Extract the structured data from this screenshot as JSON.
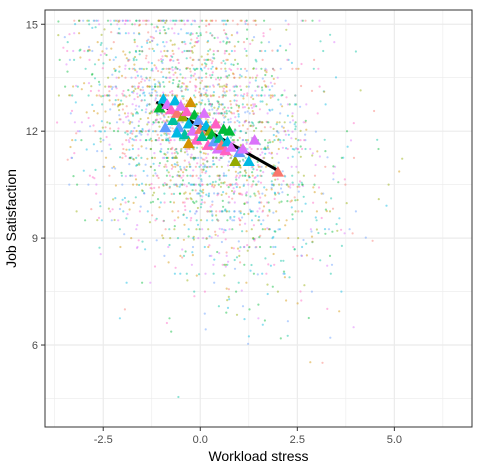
{
  "chart_data": {
    "type": "scatter",
    "title": "",
    "xlabel": "Workload stress",
    "ylabel": "Job Satisfaction",
    "xlim": [
      -4.0,
      7.0
    ],
    "ylim": [
      3.7,
      15.4
    ],
    "x_ticks": [
      -2.5,
      0.0,
      2.5,
      5.0
    ],
    "x_tick_labels": [
      "-2.5",
      "0.0",
      "2.5",
      "5.0"
    ],
    "y_ticks": [
      6,
      9,
      12,
      15
    ],
    "y_tick_labels": [
      "6",
      "9",
      "12",
      "15"
    ],
    "grid": true,
    "legend": "none",
    "colors": {
      "panel_border": "#333333",
      "grid_major": "#ebebeb",
      "fit_line": "#000000",
      "group_palette": [
        "#F8766D",
        "#D39200",
        "#93AA00",
        "#00BA38",
        "#00C19F",
        "#00B9E3",
        "#619CFF",
        "#DB72FB",
        "#FF61C3"
      ]
    },
    "raw_points": {
      "description_free": true,
      "count": 2600,
      "x_mean": 0.0,
      "x_sd": 1.6,
      "y_intercept": 12.0,
      "y_slope": -0.38,
      "y_noise_sd": 1.9,
      "y_max": 15.1,
      "marker": "small translucent dot"
    },
    "group_means": {
      "marker": "triangle",
      "points": [
        {
          "x": -1.05,
          "y": 12.65,
          "color": "#00BA38"
        },
        {
          "x": -0.95,
          "y": 12.9,
          "color": "#00B9E3"
        },
        {
          "x": -0.85,
          "y": 12.75,
          "color": "#DB72FB"
        },
        {
          "x": -0.75,
          "y": 12.6,
          "color": "#FF61C3"
        },
        {
          "x": -0.7,
          "y": 12.3,
          "color": "#00C19F"
        },
        {
          "x": -0.65,
          "y": 12.85,
          "color": "#00B9E3"
        },
        {
          "x": -0.6,
          "y": 12.5,
          "color": "#F8766D"
        },
        {
          "x": -0.55,
          "y": 12.1,
          "color": "#619CFF"
        },
        {
          "x": -0.5,
          "y": 12.7,
          "color": "#DB72FB"
        },
        {
          "x": -0.45,
          "y": 12.4,
          "color": "#93AA00"
        },
        {
          "x": -0.4,
          "y": 11.9,
          "color": "#00C19F"
        },
        {
          "x": -0.35,
          "y": 12.55,
          "color": "#FF61C3"
        },
        {
          "x": -0.3,
          "y": 12.2,
          "color": "#00B9E3"
        },
        {
          "x": -0.25,
          "y": 12.8,
          "color": "#D39200"
        },
        {
          "x": -0.2,
          "y": 12.0,
          "color": "#DB72FB"
        },
        {
          "x": -0.15,
          "y": 12.45,
          "color": "#00BA38"
        },
        {
          "x": -0.1,
          "y": 11.75,
          "color": "#FF61C3"
        },
        {
          "x": -0.05,
          "y": 12.3,
          "color": "#619CFF"
        },
        {
          "x": 0.0,
          "y": 12.05,
          "color": "#F8766D"
        },
        {
          "x": 0.05,
          "y": 11.85,
          "color": "#00C19F"
        },
        {
          "x": 0.1,
          "y": 12.5,
          "color": "#DB72FB"
        },
        {
          "x": 0.15,
          "y": 12.15,
          "color": "#00B9E3"
        },
        {
          "x": 0.2,
          "y": 11.6,
          "color": "#FF61C3"
        },
        {
          "x": 0.25,
          "y": 12.0,
          "color": "#93AA00"
        },
        {
          "x": 0.3,
          "y": 11.9,
          "color": "#00BA38"
        },
        {
          "x": 0.35,
          "y": 11.7,
          "color": "#619CFF"
        },
        {
          "x": 0.4,
          "y": 12.2,
          "color": "#FF61C3"
        },
        {
          "x": 0.45,
          "y": 11.5,
          "color": "#DB72FB"
        },
        {
          "x": 0.5,
          "y": 11.8,
          "color": "#00C19F"
        },
        {
          "x": 0.55,
          "y": 11.6,
          "color": "#F8766D"
        },
        {
          "x": 0.6,
          "y": 12.05,
          "color": "#00BA38"
        },
        {
          "x": 0.65,
          "y": 11.45,
          "color": "#FF61C3"
        },
        {
          "x": 0.7,
          "y": 11.7,
          "color": "#00B9E3"
        },
        {
          "x": 0.8,
          "y": 11.55,
          "color": "#DB72FB"
        },
        {
          "x": 0.9,
          "y": 11.15,
          "color": "#93AA00"
        },
        {
          "x": 1.0,
          "y": 11.4,
          "color": "#619CFF"
        },
        {
          "x": 1.1,
          "y": 11.5,
          "color": "#DB72FB"
        },
        {
          "x": 1.25,
          "y": 11.15,
          "color": "#00B9E3"
        },
        {
          "x": 1.4,
          "y": 11.75,
          "color": "#DB72FB"
        },
        {
          "x": -0.9,
          "y": 12.1,
          "color": "#619CFF"
        },
        {
          "x": -0.6,
          "y": 11.95,
          "color": "#00B9E3"
        },
        {
          "x": -0.3,
          "y": 11.65,
          "color": "#D39200"
        },
        {
          "x": 0.75,
          "y": 12.0,
          "color": "#00BA38"
        },
        {
          "x": 2.0,
          "y": 10.85,
          "color": "#F8766D"
        }
      ]
    },
    "fit_line": {
      "x": [
        -1.1,
        2.0
      ],
      "y": [
        12.8,
        10.9
      ]
    }
  }
}
